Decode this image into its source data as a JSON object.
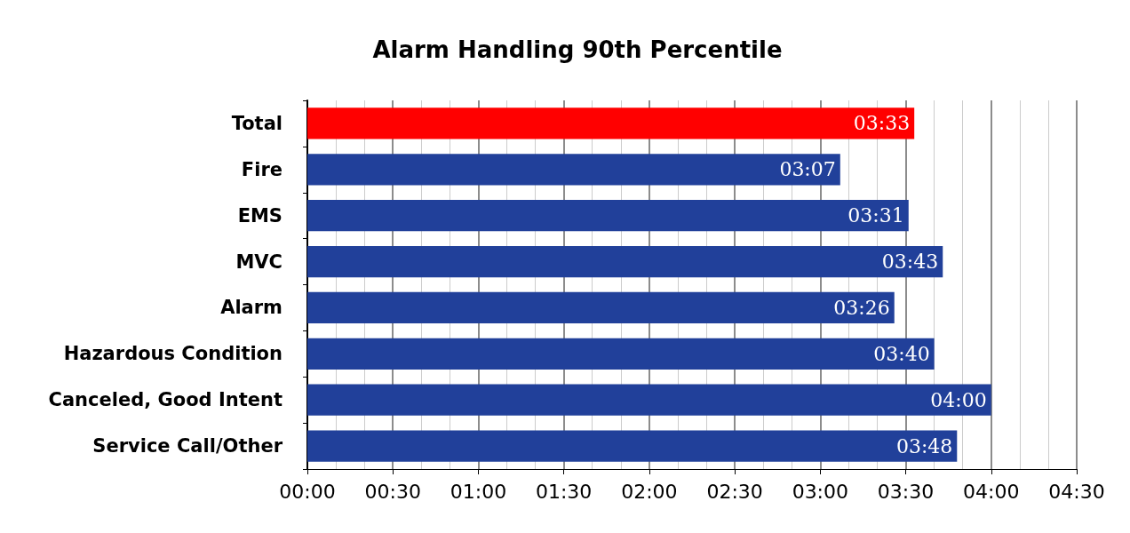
{
  "chart_data": {
    "type": "bar",
    "orientation": "horizontal",
    "title": "Alarm Handling 90th Percentile",
    "categories": [
      "Total",
      "Fire",
      "EMS",
      "MVC",
      "Alarm",
      "Hazardous Condition",
      "Canceled, Good Intent",
      "Service Call/Other"
    ],
    "values": [
      213,
      187,
      211,
      223,
      206,
      220,
      240,
      228
    ],
    "colors": [
      "#ff0000",
      "#21409a",
      "#21409a",
      "#21409a",
      "#21409a",
      "#21409a",
      "#21409a",
      "#21409a"
    ],
    "value_labels": [
      "03:33",
      "03:07",
      "03:31",
      "03:43",
      "03:26",
      "03:40",
      "04:00",
      "03:48"
    ],
    "xlim": [
      0,
      270
    ],
    "xticks": [
      {
        "value": 0,
        "label": "00:00"
      },
      {
        "value": 30,
        "label": "00:30"
      },
      {
        "value": 60,
        "label": "01:00"
      },
      {
        "value": 90,
        "label": "01:30"
      },
      {
        "value": 120,
        "label": "02:00"
      },
      {
        "value": 150,
        "label": "02:30"
      },
      {
        "value": 180,
        "label": "03:00"
      },
      {
        "value": 210,
        "label": "03:30"
      },
      {
        "value": 240,
        "label": "04:00"
      },
      {
        "value": 270,
        "label": "04:30"
      }
    ],
    "grid": "x"
  }
}
